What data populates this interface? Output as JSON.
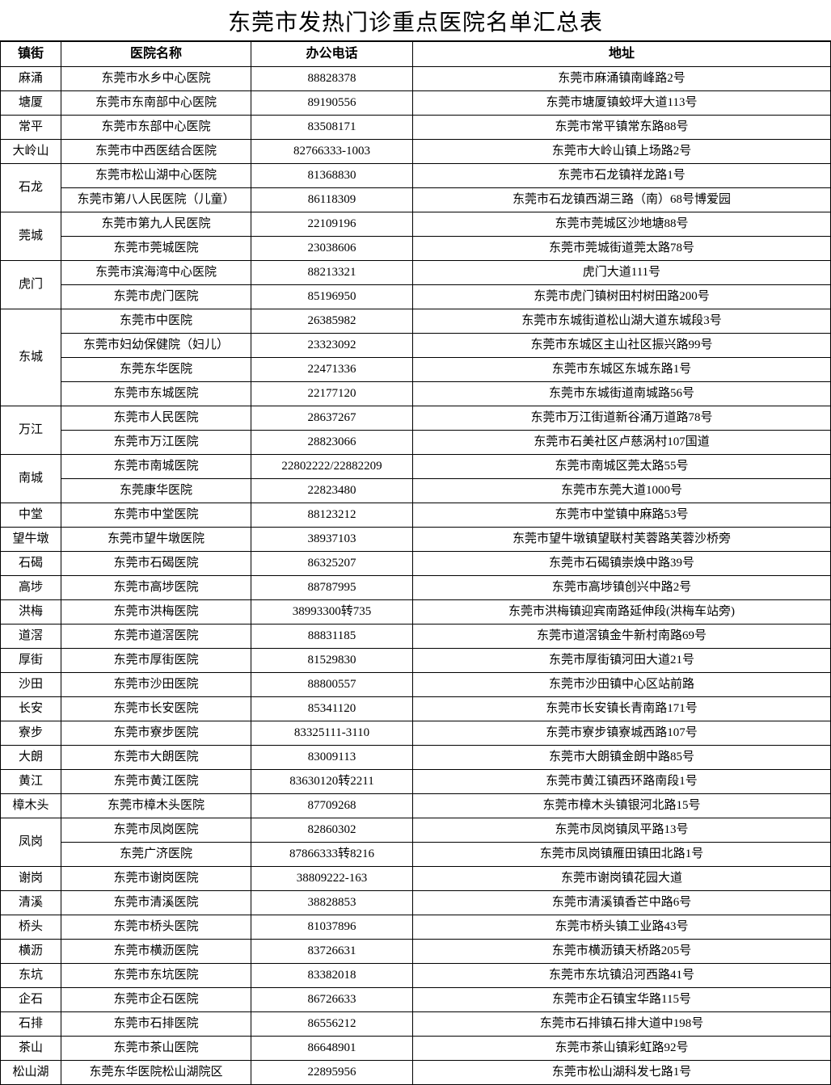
{
  "title": "东莞市发热门诊重点医院名单汇总表",
  "headers": {
    "town": "镇街",
    "name": "医院名称",
    "phone": "办公电话",
    "addr": "地址"
  },
  "groups": [
    {
      "town": "麻涌",
      "hospitals": [
        {
          "name": "东莞市水乡中心医院",
          "phone": "88828378",
          "addr": "东莞市麻涌镇南峰路2号"
        }
      ]
    },
    {
      "town": "塘厦",
      "hospitals": [
        {
          "name": "东莞市东南部中心医院",
          "phone": "89190556",
          "addr": "东莞市塘厦镇蛟坪大道113号"
        }
      ]
    },
    {
      "town": "常平",
      "hospitals": [
        {
          "name": "东莞市东部中心医院",
          "phone": "83508171",
          "addr": "东莞市常平镇常东路88号"
        }
      ]
    },
    {
      "town": "大岭山",
      "hospitals": [
        {
          "name": "东莞市中西医结合医院",
          "phone": "82766333-1003",
          "addr": "东莞市大岭山镇上场路2号"
        }
      ]
    },
    {
      "town": "石龙",
      "hospitals": [
        {
          "name": "东莞市松山湖中心医院",
          "phone": "81368830",
          "addr": "东莞市石龙镇祥龙路1号"
        },
        {
          "name": "东莞市第八人民医院（儿童）",
          "phone": "86118309",
          "addr": "东莞市石龙镇西湖三路（南）68号博爱园"
        }
      ]
    },
    {
      "town": "莞城",
      "hospitals": [
        {
          "name": "东莞市第九人民医院",
          "phone": "22109196",
          "addr": "东莞市莞城区沙地塘88号"
        },
        {
          "name": "东莞市莞城医院",
          "phone": "23038606",
          "addr": "东莞市莞城街道莞太路78号"
        }
      ]
    },
    {
      "town": "虎门",
      "hospitals": [
        {
          "name": "东莞市滨海湾中心医院",
          "phone": "88213321",
          "addr": "虎门大道111号"
        },
        {
          "name": "东莞市虎门医院",
          "phone": "85196950",
          "addr": "东莞市虎门镇树田村树田路200号"
        }
      ]
    },
    {
      "town": "东城",
      "hospitals": [
        {
          "name": "东莞市中医院",
          "phone": "26385982",
          "addr": "东莞市东城街道松山湖大道东城段3号"
        },
        {
          "name": "东莞市妇幼保健院（妇儿）",
          "phone": "23323092",
          "addr": "东莞市东城区主山社区振兴路99号"
        },
        {
          "name": "东莞东华医院",
          "phone": "22471336",
          "addr": "东莞市东城区东城东路1号"
        },
        {
          "name": "东莞市东城医院",
          "phone": "22177120",
          "addr": "东莞市东城街道南城路56号"
        }
      ]
    },
    {
      "town": "万江",
      "hospitals": [
        {
          "name": "东莞市人民医院",
          "phone": "28637267",
          "addr": "东莞市万江街道新谷涌万道路78号"
        },
        {
          "name": "东莞市万江医院",
          "phone": "28823066",
          "addr": "东莞市石美社区卢慈涡村107国道"
        }
      ]
    },
    {
      "town": "南城",
      "hospitals": [
        {
          "name": "东莞市南城医院",
          "phone": "22802222/22882209",
          "addr": "东莞市南城区莞太路55号"
        },
        {
          "name": "东莞康华医院",
          "phone": "22823480",
          "addr": "东莞市东莞大道1000号"
        }
      ]
    },
    {
      "town": "中堂",
      "hospitals": [
        {
          "name": "东莞市中堂医院",
          "phone": "88123212",
          "addr": "东莞市中堂镇中麻路53号"
        }
      ]
    },
    {
      "town": "望牛墩",
      "hospitals": [
        {
          "name": "东莞市望牛墩医院",
          "phone": "38937103",
          "addr": "东莞市望牛墩镇望联村芙蓉路芙蓉沙桥旁"
        }
      ]
    },
    {
      "town": "石碣",
      "hospitals": [
        {
          "name": "东莞市石碣医院",
          "phone": "86325207",
          "addr": "东莞市石碣镇崇焕中路39号"
        }
      ]
    },
    {
      "town": "高埗",
      "hospitals": [
        {
          "name": "东莞市高埗医院",
          "phone": "88787995",
          "addr": "东莞市高埗镇创兴中路2号"
        }
      ]
    },
    {
      "town": "洪梅",
      "hospitals": [
        {
          "name": "东莞市洪梅医院",
          "phone": "38993300转735",
          "addr": "东莞市洪梅镇迎宾南路延伸段(洪梅车站旁)"
        }
      ]
    },
    {
      "town": "道滘",
      "hospitals": [
        {
          "name": "东莞市道滘医院",
          "phone": "88831185",
          "addr": "东莞市道滘镇金牛新村南路69号"
        }
      ]
    },
    {
      "town": "厚街",
      "hospitals": [
        {
          "name": "东莞市厚街医院",
          "phone": "81529830",
          "addr": "东莞市厚街镇河田大道21号"
        }
      ]
    },
    {
      "town": "沙田",
      "hospitals": [
        {
          "name": "东莞市沙田医院",
          "phone": "88800557",
          "addr": "东莞市沙田镇中心区站前路"
        }
      ]
    },
    {
      "town": "长安",
      "hospitals": [
        {
          "name": "东莞市长安医院",
          "phone": "85341120",
          "addr": "东莞市长安镇长青南路171号"
        }
      ]
    },
    {
      "town": "寮步",
      "hospitals": [
        {
          "name": "东莞市寮步医院",
          "phone": "83325111-3110",
          "addr": "东莞市寮步镇寮城西路107号"
        }
      ]
    },
    {
      "town": "大朗",
      "hospitals": [
        {
          "name": "东莞市大朗医院",
          "phone": "83009113",
          "addr": "东莞市大朗镇金朗中路85号"
        }
      ]
    },
    {
      "town": "黄江",
      "hospitals": [
        {
          "name": "东莞市黄江医院",
          "phone": "83630120转2211",
          "addr": "东莞市黄江镇西环路南段1号"
        }
      ]
    },
    {
      "town": "樟木头",
      "hospitals": [
        {
          "name": "东莞市樟木头医院",
          "phone": "87709268",
          "addr": "东莞市樟木头镇银河北路15号"
        }
      ]
    },
    {
      "town": "凤岗",
      "hospitals": [
        {
          "name": "东莞市凤岗医院",
          "phone": "82860302",
          "addr": "东莞市凤岗镇凤平路13号"
        },
        {
          "name": "东莞广济医院",
          "phone": "87866333转8216",
          "addr": "东莞市凤岗镇雁田镇田北路1号"
        }
      ]
    },
    {
      "town": "谢岗",
      "hospitals": [
        {
          "name": "东莞市谢岗医院",
          "phone": "38809222-163",
          "addr": "东莞市谢岗镇花园大道"
        }
      ]
    },
    {
      "town": "清溪",
      "hospitals": [
        {
          "name": "东莞市清溪医院",
          "phone": "38828853",
          "addr": "东莞市清溪镇香芒中路6号"
        }
      ]
    },
    {
      "town": "桥头",
      "hospitals": [
        {
          "name": "东莞市桥头医院",
          "phone": "81037896",
          "addr": "东莞市桥头镇工业路43号"
        }
      ]
    },
    {
      "town": "横沥",
      "hospitals": [
        {
          "name": "东莞市横沥医院",
          "phone": "83726631",
          "addr": "东莞市横沥镇天桥路205号"
        }
      ]
    },
    {
      "town": "东坑",
      "hospitals": [
        {
          "name": "东莞市东坑医院",
          "phone": "83382018",
          "addr": "东莞市东坑镇沿河西路41号"
        }
      ]
    },
    {
      "town": "企石",
      "hospitals": [
        {
          "name": "东莞市企石医院",
          "phone": "86726633",
          "addr": "东莞市企石镇宝华路115号"
        }
      ]
    },
    {
      "town": "石排",
      "hospitals": [
        {
          "name": "东莞市石排医院",
          "phone": "86556212",
          "addr": "东莞市石排镇石排大道中198号"
        }
      ]
    },
    {
      "town": "茶山",
      "hospitals": [
        {
          "name": "东莞市茶山医院",
          "phone": "86648901",
          "addr": "东莞市茶山镇彩虹路92号"
        }
      ]
    },
    {
      "town": "松山湖",
      "hospitals": [
        {
          "name": "东莞东华医院松山湖院区",
          "phone": "22895956",
          "addr": "东莞市松山湖科发七路1号"
        }
      ]
    }
  ]
}
